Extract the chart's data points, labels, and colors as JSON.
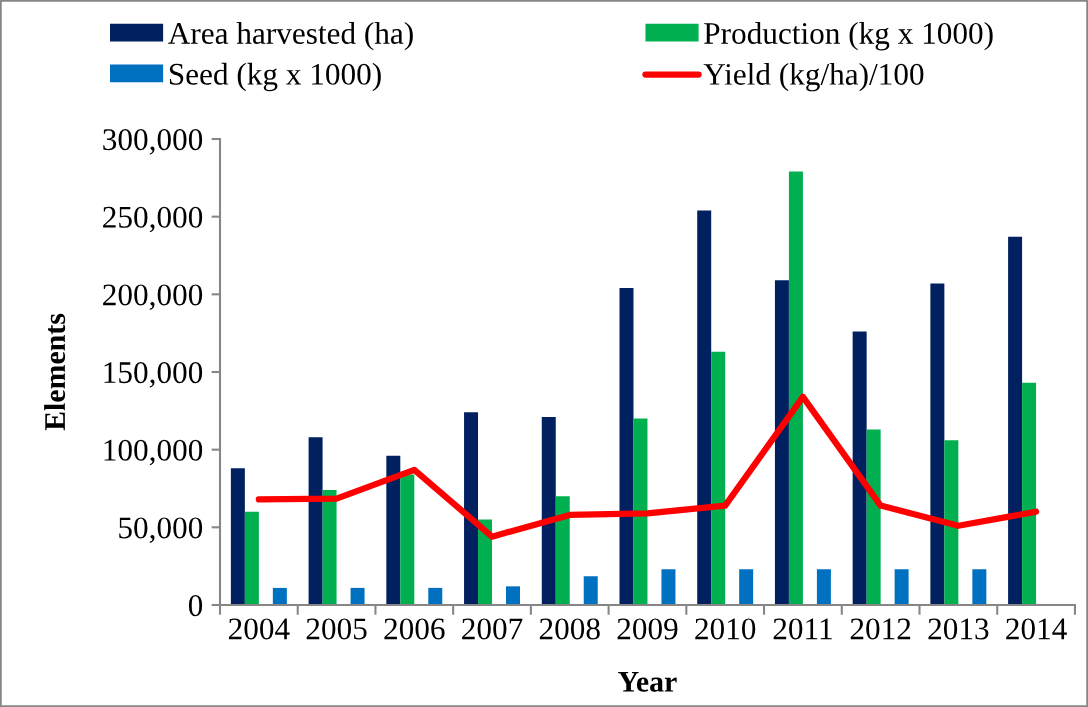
{
  "chart_data": {
    "type": "bar",
    "xlabel": "Year",
    "ylabel": "Elements",
    "categories": [
      "2004",
      "2005",
      "2006",
      "2007",
      "2008",
      "2009",
      "2010",
      "2011",
      "2012",
      "2013",
      "2014"
    ],
    "series": [
      {
        "name": "Area harvested (ha)",
        "color": "#002060",
        "values": [
          88000,
          108000,
          96000,
          124000,
          121000,
          204000,
          254000,
          209000,
          176000,
          207000,
          237000
        ]
      },
      {
        "name": "Production (kg x 1000)",
        "color": "#00b050",
        "values": [
          60000,
          74000,
          84000,
          55000,
          70000,
          120000,
          163000,
          279000,
          113000,
          106000,
          143000
        ]
      },
      {
        "name": "Yield (kg/ha)/100",
        "type": "line",
        "color": "#ff0000",
        "values": [
          68000,
          68500,
          87000,
          44000,
          58000,
          59000,
          64000,
          134000,
          64000,
          51000,
          60000
        ]
      },
      {
        "name": "Seed (kg x 1000)",
        "color": "#0070c0",
        "values": [
          11000,
          11000,
          11000,
          12000,
          18500,
          23000,
          23000,
          23000,
          23000,
          23000,
          null
        ]
      }
    ],
    "ylim": [
      0,
      300000
    ],
    "yticks": [
      0,
      {
        "value": 50000,
        "label": "50,000"
      },
      {
        "value": 100000,
        "label": "100,000"
      },
      {
        "value": 150000,
        "label": "150,000"
      },
      {
        "value": 200000,
        "label": "200,000"
      },
      {
        "value": 250000,
        "label": "250,000"
      },
      {
        "value": 300000,
        "label": "300,000"
      }
    ],
    "grid": false,
    "legend": "top",
    "line_style": "solid"
  }
}
